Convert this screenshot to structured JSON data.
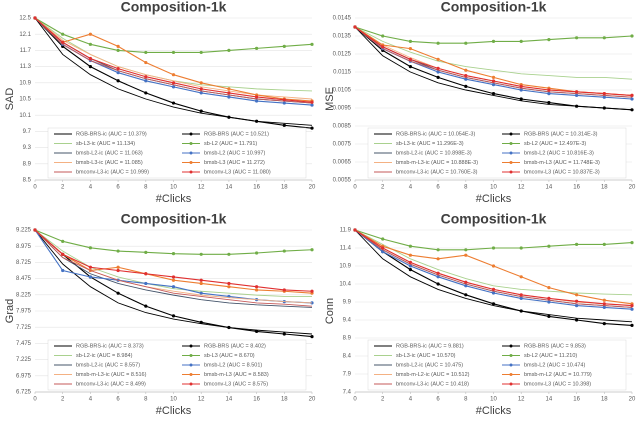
{
  "chart_data": [
    {
      "type": "line",
      "title": "Composition-1k",
      "ylabel": "SAD",
      "xlabel": "#Clicks",
      "x": [
        0,
        2,
        4,
        6,
        8,
        10,
        12,
        14,
        16,
        18,
        20
      ],
      "xlim": [
        0,
        20
      ],
      "xticks": [
        0,
        2,
        4,
        6,
        8,
        10,
        12,
        14,
        16,
        18,
        20
      ],
      "ylim": [
        8.5,
        12.5
      ],
      "yticks": [
        8.5,
        8.9,
        9.3,
        9.7,
        10.1,
        10.5,
        10.9,
        11.3,
        11.7,
        12.1,
        12.5
      ],
      "grid": true,
      "series": [
        {
          "name": "RGB-BRS-ic (AUC = 10.379)",
          "color": "#000000",
          "marker": false,
          "values": [
            12.5,
            11.6,
            11.1,
            10.75,
            10.5,
            10.3,
            10.15,
            10.05,
            9.95,
            9.9,
            9.85
          ]
        },
        {
          "name": "RGB-BRS (AUC = 10.521)",
          "color": "#000000",
          "marker": true,
          "values": [
            12.5,
            11.8,
            11.3,
            10.95,
            10.65,
            10.4,
            10.2,
            10.05,
            9.95,
            9.85,
            9.78
          ]
        },
        {
          "name": "sb-L3-ic (AUC = 11.134)",
          "color": "#a9d18e",
          "marker": false,
          "values": [
            12.5,
            12.0,
            11.6,
            11.3,
            11.1,
            10.95,
            10.85,
            10.8,
            10.75,
            10.72,
            10.7
          ]
        },
        {
          "name": "sb-L2 (AUC = 11.791)",
          "color": "#70ad47",
          "marker": true,
          "values": [
            12.5,
            12.1,
            11.85,
            11.7,
            11.65,
            11.65,
            11.65,
            11.7,
            11.75,
            11.8,
            11.85
          ]
        },
        {
          "name": "bmsb-L2-ic (AUC = 11.063)",
          "color": "#44546a",
          "marker": false,
          "values": [
            12.5,
            11.9,
            11.5,
            11.2,
            11.0,
            10.85,
            10.7,
            10.6,
            10.5,
            10.45,
            10.4
          ]
        },
        {
          "name": "bmsb-L2 (AUC = 10.997)",
          "color": "#4472c4",
          "marker": true,
          "values": [
            12.5,
            11.85,
            11.45,
            11.15,
            10.95,
            10.8,
            10.65,
            10.55,
            10.45,
            10.4,
            10.35
          ]
        },
        {
          "name": "bmsb-L3-ic (AUC = 11.085)",
          "color": "#f4b183",
          "marker": false,
          "values": [
            12.5,
            11.95,
            11.6,
            11.3,
            11.1,
            10.95,
            10.8,
            10.7,
            10.6,
            10.55,
            10.5
          ]
        },
        {
          "name": "bmsb-L3 (AUC = 11.272)",
          "color": "#ed7d31",
          "marker": true,
          "values": [
            12.5,
            11.9,
            12.1,
            11.8,
            11.4,
            11.1,
            10.9,
            10.75,
            10.6,
            10.5,
            10.45
          ]
        },
        {
          "name": "bmconv-L3-ic (AUC = 10.999)",
          "color": "#c55a5a",
          "marker": false,
          "values": [
            12.5,
            11.85,
            11.45,
            11.2,
            11.0,
            10.85,
            10.7,
            10.6,
            10.5,
            10.45,
            10.4
          ]
        },
        {
          "name": "bmconv-L3 (AUC = 11.080)",
          "color": "#e03030",
          "marker": true,
          "values": [
            12.5,
            11.9,
            11.5,
            11.25,
            11.05,
            10.9,
            10.75,
            10.65,
            10.55,
            10.48,
            10.42
          ]
        }
      ]
    },
    {
      "type": "line",
      "title": "Composition-1k",
      "ylabel": "MSE",
      "xlabel": "#Clicks",
      "x": [
        0,
        2,
        4,
        6,
        8,
        10,
        12,
        14,
        16,
        18,
        20
      ],
      "xlim": [
        0,
        20
      ],
      "xticks": [
        0,
        2,
        4,
        6,
        8,
        10,
        12,
        14,
        16,
        18,
        20
      ],
      "ylim": [
        0.0055,
        0.0145
      ],
      "yticks": [
        0.0055,
        0.0065,
        0.0075,
        0.0085,
        0.0095,
        0.0105,
        0.0115,
        0.0125,
        0.0135,
        0.0145
      ],
      "grid": true,
      "series": [
        {
          "name": "RGB-BRS-ic (AUC = 10.054E-3)",
          "color": "#000000",
          "marker": false,
          "values": [
            0.014,
            0.0124,
            0.0115,
            0.0109,
            0.0105,
            0.0102,
            0.0099,
            0.0097,
            0.0096,
            0.0095,
            0.0094
          ]
        },
        {
          "name": "RGB-BRS (AUC = 10.314E-3)",
          "color": "#000000",
          "marker": true,
          "values": [
            0.014,
            0.0127,
            0.0118,
            0.0112,
            0.0107,
            0.0103,
            0.01,
            0.0098,
            0.0096,
            0.0095,
            0.0094
          ]
        },
        {
          "name": "sb-L3-ic (AUC = 11.296E-3)",
          "color": "#a9d18e",
          "marker": false,
          "values": [
            0.014,
            0.0132,
            0.0126,
            0.0121,
            0.0118,
            0.0116,
            0.0114,
            0.0113,
            0.0112,
            0.0112,
            0.0111
          ]
        },
        {
          "name": "sb-L2 (AUC = 12.497E-3)",
          "color": "#70ad47",
          "marker": true,
          "values": [
            0.014,
            0.0135,
            0.0132,
            0.0131,
            0.0131,
            0.0132,
            0.0132,
            0.0133,
            0.0134,
            0.0134,
            0.0135
          ]
        },
        {
          "name": "bmsb-L2-ic (AUC = 10.898E-3)",
          "color": "#44546a",
          "marker": false,
          "values": [
            0.014,
            0.0129,
            0.0122,
            0.0116,
            0.0112,
            0.0109,
            0.0106,
            0.0104,
            0.0103,
            0.0102,
            0.0101
          ]
        },
        {
          "name": "bmsb-L2 (AUC = 10.816E-3)",
          "color": "#4472c4",
          "marker": true,
          "values": [
            0.014,
            0.0128,
            0.0121,
            0.0115,
            0.0111,
            0.0108,
            0.0105,
            0.0103,
            0.0102,
            0.0101,
            0.01
          ]
        },
        {
          "name": "bmsb-m-L3-ic (AUC = 10.888E-3)",
          "color": "#f4b183",
          "marker": false,
          "values": [
            0.014,
            0.013,
            0.0123,
            0.0117,
            0.0113,
            0.011,
            0.0107,
            0.0105,
            0.0104,
            0.0103,
            0.0102
          ]
        },
        {
          "name": "bmsb-m-L3 (AUC = 11.748E-3)",
          "color": "#ed7d31",
          "marker": true,
          "values": [
            0.014,
            0.013,
            0.0128,
            0.0122,
            0.0116,
            0.0112,
            0.0108,
            0.0106,
            0.0104,
            0.0103,
            0.0102
          ]
        },
        {
          "name": "bmconv-L3-ic (AUC = 10.760E-3)",
          "color": "#c55a5a",
          "marker": false,
          "values": [
            0.014,
            0.0128,
            0.0121,
            0.0116,
            0.0112,
            0.0109,
            0.0106,
            0.0104,
            0.0103,
            0.0102,
            0.0101
          ]
        },
        {
          "name": "bmconv-L3 (AUC = 10.837E-3)",
          "color": "#e03030",
          "marker": true,
          "values": [
            0.014,
            0.0129,
            0.0122,
            0.0117,
            0.0113,
            0.011,
            0.0107,
            0.0105,
            0.0104,
            0.0103,
            0.0102
          ]
        }
      ]
    },
    {
      "type": "line",
      "title": "Composition-1k",
      "ylabel": "Grad",
      "xlabel": "#Clicks",
      "x": [
        0,
        2,
        4,
        6,
        8,
        10,
        12,
        14,
        16,
        18,
        20
      ],
      "xlim": [
        0,
        20
      ],
      "xticks": [
        0,
        2,
        4,
        6,
        8,
        10,
        12,
        14,
        16,
        18,
        20
      ],
      "ylim": [
        6.725,
        9.225
      ],
      "yticks": [
        6.725,
        6.975,
        7.225,
        7.475,
        7.725,
        7.975,
        8.225,
        8.475,
        8.725,
        8.975,
        9.225
      ],
      "grid": true,
      "series": [
        {
          "name": "RGB-BRS-ic (AUC = 8.373)",
          "color": "#000000",
          "marker": false,
          "values": [
            9.225,
            8.7,
            8.35,
            8.1,
            7.95,
            7.85,
            7.78,
            7.72,
            7.68,
            7.65,
            7.62
          ]
        },
        {
          "name": "RGB-BRS (AUC = 8.402)",
          "color": "#000000",
          "marker": true,
          "values": [
            9.225,
            8.85,
            8.5,
            8.25,
            8.05,
            7.9,
            7.8,
            7.72,
            7.66,
            7.62,
            7.58
          ]
        },
        {
          "name": "sb-L2-ic (AUC = 8.984)",
          "color": "#a9d18e",
          "marker": false,
          "values": [
            9.225,
            8.9,
            8.65,
            8.5,
            8.4,
            8.32,
            8.28,
            8.25,
            8.22,
            8.2,
            8.2
          ]
        },
        {
          "name": "sb-L3 (AUC = 8.670)",
          "color": "#70ad47",
          "marker": true,
          "values": [
            9.225,
            9.05,
            8.95,
            8.9,
            8.88,
            8.86,
            8.85,
            8.85,
            8.87,
            8.9,
            8.92
          ]
        },
        {
          "name": "bmsb-L2-ic (AUC = 8.557)",
          "color": "#44546a",
          "marker": false,
          "values": [
            9.225,
            8.8,
            8.55,
            8.4,
            8.3,
            8.22,
            8.15,
            8.1,
            8.07,
            8.05,
            8.03
          ]
        },
        {
          "name": "bmsb-L2 (AUC = 8.501)",
          "color": "#4472c4",
          "marker": true,
          "values": [
            9.225,
            8.6,
            8.5,
            8.45,
            8.4,
            8.35,
            8.25,
            8.2,
            8.15,
            8.12,
            8.1
          ]
        },
        {
          "name": "bmsb-m-L3-ic (AUC = 8.516)",
          "color": "#f4b183",
          "marker": false,
          "values": [
            9.225,
            8.85,
            8.6,
            8.45,
            8.35,
            8.28,
            8.22,
            8.18,
            8.15,
            8.12,
            8.1
          ]
        },
        {
          "name": "bmsb-m-L3 (AUC = 8.583)",
          "color": "#ed7d31",
          "marker": true,
          "values": [
            9.225,
            8.85,
            8.6,
            8.65,
            8.55,
            8.45,
            8.4,
            8.35,
            8.3,
            8.28,
            8.25
          ]
        },
        {
          "name": "bmconv-L3-ic (AUC = 8.499)",
          "color": "#c55a5a",
          "marker": false,
          "values": [
            9.225,
            8.8,
            8.6,
            8.45,
            8.35,
            8.25,
            8.2,
            8.15,
            8.1,
            8.08,
            8.05
          ]
        },
        {
          "name": "bmconv-L3 (AUC = 8.575)",
          "color": "#e03030",
          "marker": true,
          "values": [
            9.225,
            8.85,
            8.65,
            8.6,
            8.55,
            8.5,
            8.45,
            8.4,
            8.35,
            8.3,
            8.28
          ]
        }
      ]
    },
    {
      "type": "line",
      "title": "Composition-1k",
      "ylabel": "Conn",
      "xlabel": "#Clicks",
      "x": [
        0,
        2,
        4,
        6,
        8,
        10,
        12,
        14,
        16,
        18,
        20
      ],
      "xlim": [
        0,
        20
      ],
      "xticks": [
        0,
        2,
        4,
        6,
        8,
        10,
        12,
        14,
        16,
        18,
        20
      ],
      "ylim": [
        7.4,
        11.9
      ],
      "yticks": [
        7.4,
        7.9,
        8.4,
        8.9,
        9.4,
        9.9,
        10.4,
        10.9,
        11.4,
        11.9
      ],
      "grid": true,
      "series": [
        {
          "name": "RGB-BRS-ic (AUC = 9.881)",
          "color": "#000000",
          "marker": false,
          "values": [
            11.9,
            11.1,
            10.6,
            10.25,
            10.0,
            9.8,
            9.65,
            9.55,
            9.45,
            9.4,
            9.35
          ]
        },
        {
          "name": "RGB-BRS (AUC = 9.853)",
          "color": "#000000",
          "marker": true,
          "values": [
            11.9,
            11.3,
            10.8,
            10.4,
            10.1,
            9.85,
            9.65,
            9.5,
            9.4,
            9.3,
            9.25
          ]
        },
        {
          "name": "sb-L3-ic (AUC = 10.570)",
          "color": "#a9d18e",
          "marker": false,
          "values": [
            11.9,
            11.5,
            11.1,
            10.8,
            10.55,
            10.35,
            10.25,
            10.2,
            10.15,
            10.12,
            10.1
          ]
        },
        {
          "name": "sb-L2 (AUC = 11.210)",
          "color": "#70ad47",
          "marker": true,
          "values": [
            11.9,
            11.65,
            11.45,
            11.35,
            11.35,
            11.4,
            11.4,
            11.45,
            11.5,
            11.5,
            11.55
          ]
        },
        {
          "name": "bmsb-L2-ic (AUC = 10.475)",
          "color": "#44546a",
          "marker": false,
          "values": [
            11.9,
            11.35,
            10.95,
            10.65,
            10.4,
            10.2,
            10.05,
            9.95,
            9.85,
            9.8,
            9.75
          ]
        },
        {
          "name": "bmsb-L2 (AUC = 10.474)",
          "color": "#4472c4",
          "marker": true,
          "values": [
            11.9,
            11.3,
            10.9,
            10.6,
            10.35,
            10.15,
            10.0,
            9.9,
            9.8,
            9.75,
            9.7
          ]
        },
        {
          "name": "bmsb-m-L2-ic (AUC = 10.512)",
          "color": "#f4b183",
          "marker": false,
          "values": [
            11.9,
            11.4,
            11.0,
            10.7,
            10.45,
            10.25,
            10.1,
            10.0,
            9.9,
            9.85,
            9.8
          ]
        },
        {
          "name": "bmsb-m-L2 (AUC = 10.779)",
          "color": "#ed7d31",
          "marker": true,
          "values": [
            11.9,
            11.45,
            11.2,
            11.1,
            11.2,
            10.9,
            10.6,
            10.3,
            10.1,
            9.95,
            9.85
          ]
        },
        {
          "name": "bmconv-L3-ic (AUC = 10.418)",
          "color": "#c55a5a",
          "marker": false,
          "values": [
            11.9,
            11.35,
            10.95,
            10.65,
            10.4,
            10.2,
            10.05,
            9.95,
            9.85,
            9.8,
            9.75
          ]
        },
        {
          "name": "bmconv-L3 (AUC = 10.398)",
          "color": "#e03030",
          "marker": true,
          "values": [
            11.9,
            11.4,
            11.0,
            10.7,
            10.45,
            10.25,
            10.1,
            10.0,
            9.92,
            9.85,
            9.8
          ]
        }
      ]
    }
  ]
}
